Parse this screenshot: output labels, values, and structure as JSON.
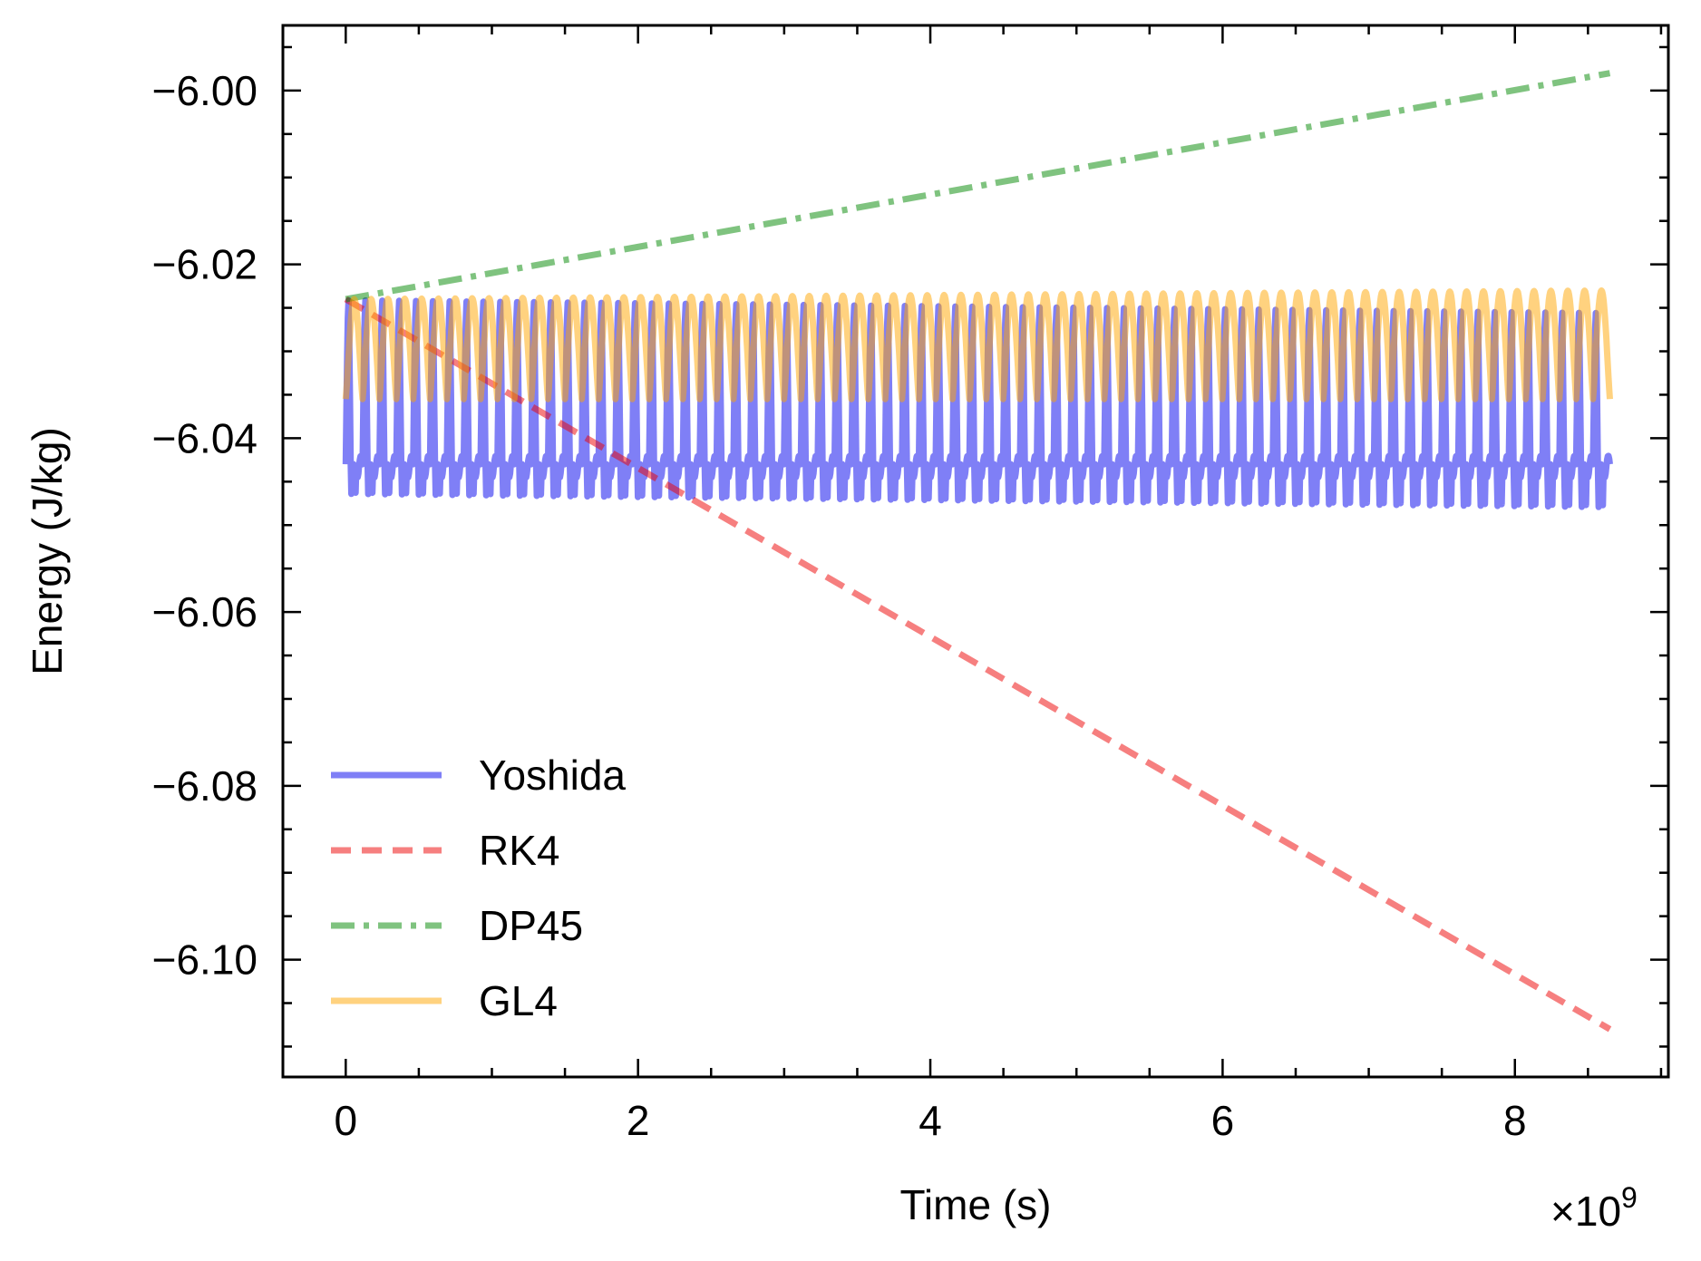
{
  "chart_data": {
    "type": "line",
    "xlabel": "Time (s)",
    "ylabel": "Energy (J/kg)",
    "x_multiplier": "×10",
    "x_multiplier_exp": "9",
    "xlim": [
      -0.43,
      9.05
    ],
    "ylim": [
      -6.1135,
      -5.9925
    ],
    "x_ticks": [
      0,
      2,
      4,
      6,
      8
    ],
    "x_tick_labels": [
      "0",
      "2",
      "4",
      "6",
      "8"
    ],
    "y_ticks": [
      -6.1,
      -6.08,
      -6.06,
      -6.04,
      -6.02,
      -6.0
    ],
    "y_tick_labels": [
      "−6.10",
      "−6.08",
      "−6.06",
      "−6.04",
      "−6.02",
      "−6.00"
    ],
    "grid": false,
    "legend_position": "lower-left",
    "series": [
      {
        "name": "Yoshida",
        "style": "solid",
        "color": "#0000ee",
        "opacity": 0.5,
        "x_range": [
          0,
          8.65
        ],
        "cycles": 75,
        "y_center": -6.043,
        "upper_start": -6.024,
        "upper_end": -6.0255,
        "lower_start": -6.047,
        "lower_end": -6.0488
      },
      {
        "name": "RK4",
        "style": "dashed",
        "color": "#ee0000",
        "opacity": 0.5,
        "x": [
          0,
          8.65
        ],
        "y": [
          -6.024,
          -6.108
        ]
      },
      {
        "name": "DP45",
        "style": "dashdot",
        "color": "#008800",
        "opacity": 0.5,
        "x": [
          0,
          8.65
        ],
        "y": [
          -6.024,
          -5.998
        ]
      },
      {
        "name": "GL4",
        "style": "solid",
        "color": "#ffa500",
        "opacity": 0.5,
        "x_range": [
          0,
          8.65
        ],
        "cycles": 75,
        "upper_start": -6.024,
        "upper_end": -6.023,
        "lower": -6.0355
      }
    ]
  }
}
